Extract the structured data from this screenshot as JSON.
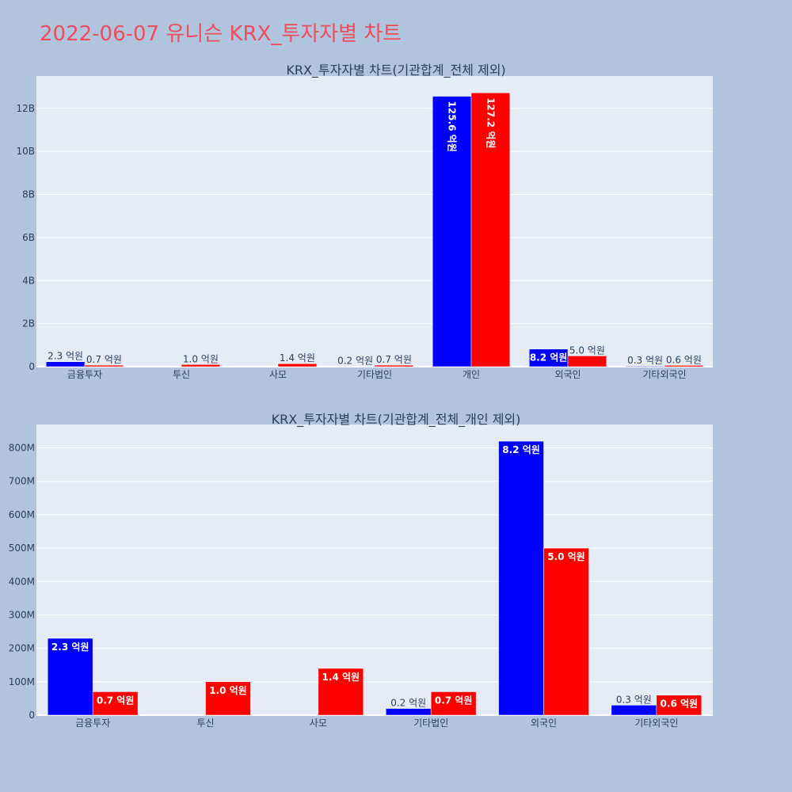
{
  "title": "2022-06-07 유니슨 KRX_투자자별 차트",
  "colors": {
    "buy": "#0000ff",
    "sell": "#ff0000",
    "plot_bg": "#e5ecf6",
    "page_bg": "#b0c4de",
    "title": "#ef4d5a"
  },
  "chart_data": [
    {
      "type": "bar",
      "title": "KRX_투자자별 차트(기관합계_전체 제외)",
      "categories": [
        "금융투자",
        "투신",
        "사모",
        "기타법인",
        "개인",
        "외국인",
        "기타외국인"
      ],
      "series": [
        {
          "color": "#0000ff",
          "values": [
            230000000,
            0,
            0,
            20000000,
            12560000000,
            820000000,
            30000000
          ],
          "labels": [
            "2.3 억원",
            "",
            "",
            "0.2 억원",
            "125.6 억원",
            "8.2 억원",
            "0.3 억원"
          ]
        },
        {
          "color": "#ff0000",
          "values": [
            70000000,
            100000000,
            140000000,
            70000000,
            12720000000,
            500000000,
            60000000
          ],
          "labels": [
            "0.7 억원",
            "1.0 억원",
            "1.4 억원",
            "0.7 억원",
            "127.2 억원",
            "5.0 억원",
            "0.6 억원"
          ]
        }
      ],
      "ylim": [
        0,
        13500000000
      ],
      "yticks": [
        0,
        2000000000,
        4000000000,
        6000000000,
        8000000000,
        10000000000,
        12000000000
      ],
      "ytick_labels": [
        "0",
        "2B",
        "4B",
        "6B",
        "8B",
        "10B",
        "12B"
      ]
    },
    {
      "type": "bar",
      "title": "KRX_투자자별 차트(기관합계_전체_개인 제외)",
      "categories": [
        "금융투자",
        "투신",
        "사모",
        "기타법인",
        "외국인",
        "기타외국인"
      ],
      "series": [
        {
          "color": "#0000ff",
          "values": [
            230000000,
            0,
            0,
            20000000,
            820000000,
            30000000
          ],
          "labels": [
            "2.3 억원",
            "",
            "",
            "0.2 억원",
            "8.2 억원",
            "0.3 억원"
          ]
        },
        {
          "color": "#ff0000",
          "values": [
            70000000,
            100000000,
            140000000,
            70000000,
            500000000,
            60000000
          ],
          "labels": [
            "0.7 억원",
            "1.0 억원",
            "1.4 억원",
            "0.7 억원",
            "5.0 억원",
            "0.6 억원"
          ]
        }
      ],
      "ylim": [
        0,
        870000000
      ],
      "yticks": [
        0,
        100000000,
        200000000,
        300000000,
        400000000,
        500000000,
        600000000,
        700000000,
        800000000
      ],
      "ytick_labels": [
        "0",
        "100M",
        "200M",
        "300M",
        "400M",
        "500M",
        "600M",
        "700M",
        "800M"
      ]
    }
  ]
}
